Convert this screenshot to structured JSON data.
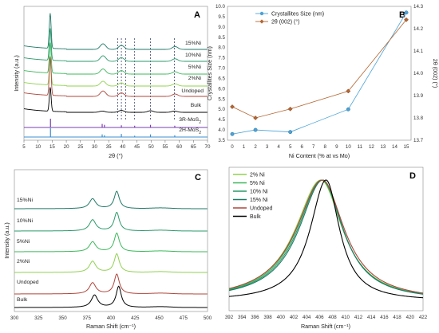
{
  "chart_data": [
    {
      "panel": "A",
      "type": "line",
      "xlabel": "2θ (°)",
      "ylabel": "Intensity (a.u.)",
      "xlim": [
        5,
        70
      ],
      "xticks": [
        5,
        10,
        15,
        20,
        25,
        30,
        35,
        40,
        45,
        50,
        55,
        60,
        65,
        70
      ],
      "series": [
        {
          "name": "15%Ni",
          "color": "#1f7a66",
          "peaks": [
            [
              14.3,
              22
            ],
            [
              33,
              3.5
            ],
            [
              39.5,
              2.5
            ],
            [
              58.5,
              1.8
            ]
          ]
        },
        {
          "name": "10%Ni",
          "color": "#2a9a6a",
          "peaks": [
            [
              14.3,
              20
            ],
            [
              33,
              3.5
            ],
            [
              39.5,
              2.3
            ],
            [
              58.5,
              1.6
            ]
          ]
        },
        {
          "name": "5%Ni",
          "color": "#3bb85a",
          "peaks": [
            [
              14.3,
              19
            ],
            [
              33,
              3.2
            ],
            [
              39.5,
              2.2
            ],
            [
              58.5,
              1.5
            ]
          ]
        },
        {
          "name": "2%Ni",
          "color": "#8fd14f",
          "peaks": [
            [
              14.3,
              18
            ],
            [
              33,
              3
            ],
            [
              39.5,
              2
            ],
            [
              58.5,
              1.4
            ]
          ]
        },
        {
          "name": "Undoped",
          "color": "#b0453a",
          "peaks": [
            [
              14.3,
              24
            ],
            [
              33,
              3.4
            ],
            [
              39.5,
              2.2
            ],
            [
              58.5,
              1.5
            ]
          ]
        },
        {
          "name": "Bulk",
          "color": "#000000",
          "peaks": [
            [
              14.3,
              15
            ],
            [
              32.7,
              0.8
            ],
            [
              39.5,
              1.2
            ],
            [
              49.8,
              1
            ],
            [
              58.3,
              0.8
            ]
          ]
        }
      ],
      "references": [
        {
          "name": "3R-MoS",
          "subscript": "2",
          "color": "#7a3fb0",
          "lines": [
            [
              14.4,
              10
            ],
            [
              32.7,
              4
            ],
            [
              33.5,
              3
            ],
            [
              39.5,
              2.5
            ],
            [
              44.2,
              2
            ],
            [
              49.8,
              3
            ],
            [
              58.4,
              2
            ]
          ]
        },
        {
          "name": "2H-MoS",
          "subscript": "2",
          "color": "#3a8fd0",
          "lines": [
            [
              14.4,
              10
            ],
            [
              32.7,
              3
            ],
            [
              33.5,
              2
            ],
            [
              39.5,
              3.5
            ],
            [
              44.2,
              1.5
            ],
            [
              49.8,
              3
            ],
            [
              58.4,
              2
            ]
          ]
        }
      ],
      "dashed_x": [
        38.2,
        39.5,
        41,
        44.2,
        49.8,
        58.3
      ]
    },
    {
      "panel": "B",
      "type": "line",
      "xlabel": "Ni Content (% at vs Mo)",
      "ylabel": "Crystallites Size (nm)",
      "y2label": "2θ (002) (°)",
      "xlim": [
        0,
        15
      ],
      "ylim": [
        3.5,
        10
      ],
      "y2lim": [
        13.7,
        14.3
      ],
      "xticks": [
        0,
        1,
        2,
        3,
        4,
        5,
        6,
        7,
        8,
        9,
        10,
        11,
        12,
        13,
        14,
        15
      ],
      "yticks": [
        3.5,
        4.0,
        4.5,
        5.0,
        5.5,
        6.0,
        6.5,
        7.0,
        7.5,
        8.0,
        8.5,
        9.0,
        9.5,
        10.0
      ],
      "y2ticks": [
        13.7,
        13.8,
        13.9,
        14.0,
        14.1,
        14.2,
        14.3
      ],
      "x": [
        0,
        2,
        5,
        10,
        15
      ],
      "series": [
        {
          "name": "Crystallites Size (nm)",
          "axis": "left",
          "color": "#4aa3d8",
          "marker": "circle",
          "values": [
            3.8,
            4.0,
            3.9,
            5.0,
            9.7
          ]
        },
        {
          "name": "2θ (002) (°)",
          "axis": "right",
          "color": "#b5652f",
          "marker": "diamond",
          "values": [
            13.85,
            13.8,
            13.84,
            13.92,
            14.24
          ]
        }
      ]
    },
    {
      "panel": "C",
      "type": "line",
      "xlabel": "Raman Shift (cm⁻¹)",
      "ylabel": "Intensity (a.u.)",
      "xlim": [
        300,
        500
      ],
      "xticks": [
        300,
        325,
        350,
        375,
        400,
        425,
        450,
        475,
        500
      ],
      "series": [
        {
          "name": "15%Ni",
          "color": "#1f7a66",
          "e2g": [
            381,
            8
          ],
          "a1g": [
            406,
            14
          ]
        },
        {
          "name": "10%Ni",
          "color": "#2a9a6a",
          "e2g": [
            381,
            9
          ],
          "a1g": [
            406,
            15
          ]
        },
        {
          "name": "5%Ni",
          "color": "#3bb85a",
          "e2g": [
            381,
            8
          ],
          "a1g": [
            406,
            15
          ]
        },
        {
          "name": "2%Ni",
          "color": "#8fd14f",
          "e2g": [
            381,
            9
          ],
          "a1g": [
            406,
            15
          ]
        },
        {
          "name": "Undoped",
          "color": "#b0453a",
          "e2g": [
            381,
            9
          ],
          "a1g": [
            406,
            16
          ]
        },
        {
          "name": "Bulk",
          "color": "#000000",
          "e2g": [
            383,
            10
          ],
          "a1g": [
            408,
            17
          ]
        }
      ]
    },
    {
      "panel": "D",
      "type": "line",
      "xlabel": "Raman Shift (cm⁻¹)",
      "xlim": [
        392,
        422
      ],
      "xticks": [
        392,
        394,
        396,
        398,
        400,
        402,
        404,
        406,
        408,
        410,
        412,
        414,
        416,
        418,
        420,
        422
      ],
      "legend": "top-left",
      "series": [
        {
          "name": "2% Ni",
          "color": "#8fd14f",
          "center": 406.2,
          "fwhm": 9.6
        },
        {
          "name": "5% Ni",
          "color": "#3bb85a",
          "center": 406.3,
          "fwhm": 9.4
        },
        {
          "name": "10% Ni",
          "color": "#2a9a6a",
          "center": 406.4,
          "fwhm": 9.2
        },
        {
          "name": "15% Ni",
          "color": "#1f7a66",
          "center": 406.5,
          "fwhm": 9.0
        },
        {
          "name": "Undoped",
          "color": "#b0453a",
          "center": 406.4,
          "fwhm": 9.8
        },
        {
          "name": "Bulk",
          "color": "#000000",
          "center": 407.0,
          "fwhm": 6.0
        }
      ]
    }
  ]
}
